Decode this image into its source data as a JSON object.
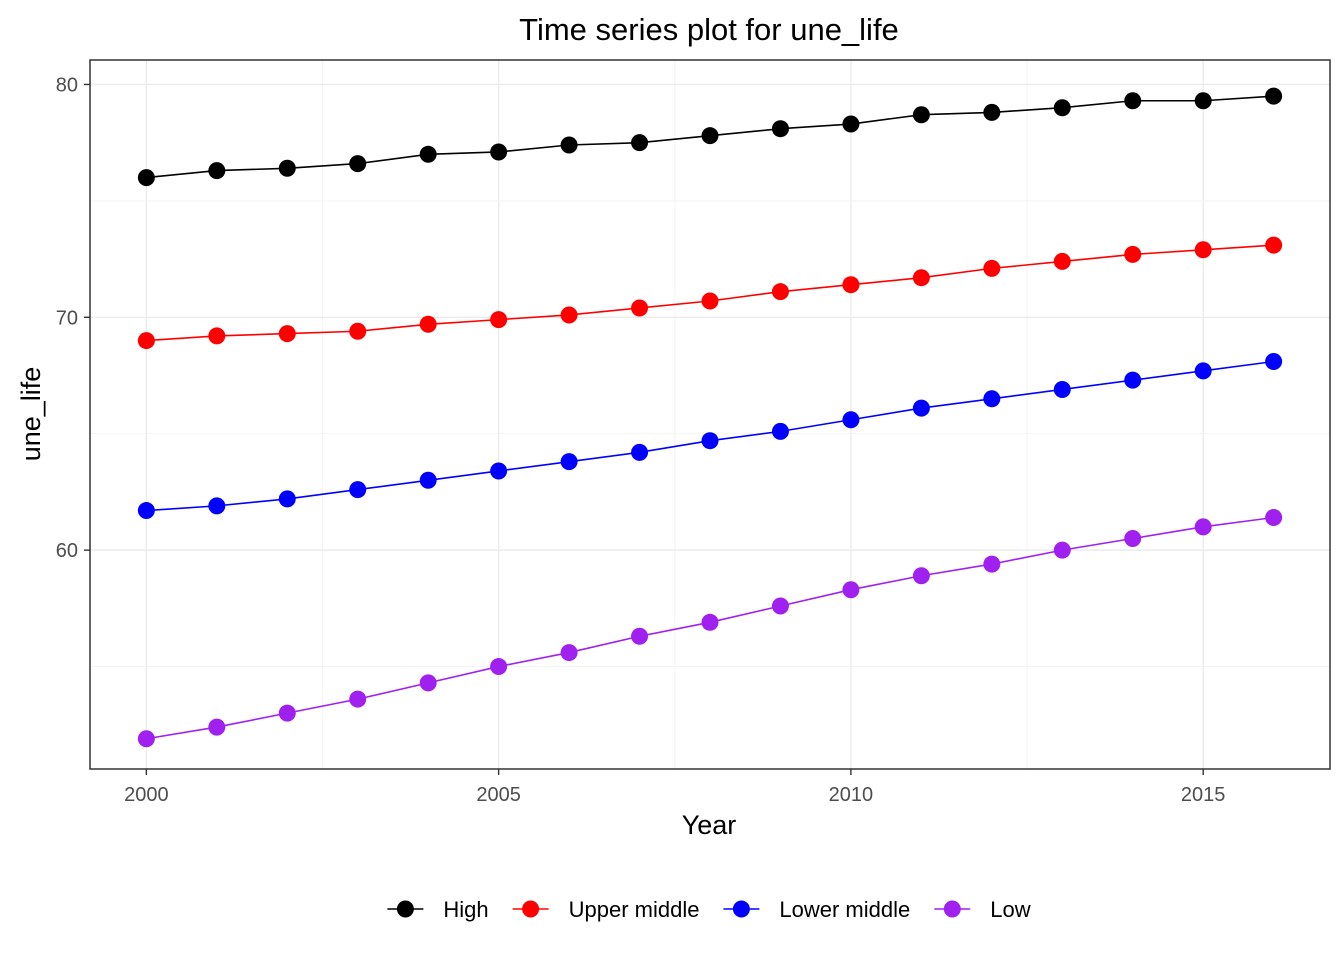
{
  "chart_data": {
    "type": "line",
    "title": "Time series plot for une_life",
    "xlabel": "Year",
    "ylabel": "une_life",
    "x": [
      2000,
      2001,
      2002,
      2003,
      2004,
      2005,
      2006,
      2007,
      2008,
      2009,
      2010,
      2011,
      2012,
      2013,
      2014,
      2015,
      2016
    ],
    "xlim": [
      1999.2,
      2016.8
    ],
    "ylim": [
      50.6,
      81.05
    ],
    "x_ticks": [
      2000,
      2005,
      2010,
      2015
    ],
    "x_tick_labels": [
      "2000",
      "2005",
      "2010",
      "2015"
    ],
    "y_ticks": [
      60,
      70,
      80
    ],
    "y_tick_labels": [
      "60",
      "70",
      "80"
    ],
    "grid": true,
    "legend_position": "bottom",
    "series": [
      {
        "name": "High",
        "color": "#000000",
        "values": [
          76.0,
          76.3,
          76.4,
          76.6,
          77.0,
          77.1,
          77.4,
          77.5,
          77.8,
          78.1,
          78.3,
          78.7,
          78.8,
          79.0,
          79.3,
          79.3,
          79.5
        ]
      },
      {
        "name": "Upper middle",
        "color": "#ff0000",
        "values": [
          69.0,
          69.2,
          69.3,
          69.4,
          69.7,
          69.9,
          70.1,
          70.4,
          70.7,
          71.1,
          71.4,
          71.7,
          72.1,
          72.4,
          72.7,
          72.9,
          73.1
        ]
      },
      {
        "name": "Lower middle",
        "color": "#0000ff",
        "values": [
          61.7,
          61.9,
          62.2,
          62.6,
          63.0,
          63.4,
          63.8,
          64.2,
          64.7,
          65.1,
          65.6,
          66.1,
          66.5,
          66.9,
          67.3,
          67.7,
          68.1
        ]
      },
      {
        "name": "Low",
        "color": "#a020f0",
        "values": [
          51.9,
          52.4,
          53.0,
          53.6,
          54.3,
          55.0,
          55.6,
          56.3,
          56.9,
          57.6,
          58.3,
          58.9,
          59.4,
          60.0,
          60.5,
          61.0,
          61.4
        ]
      }
    ]
  }
}
